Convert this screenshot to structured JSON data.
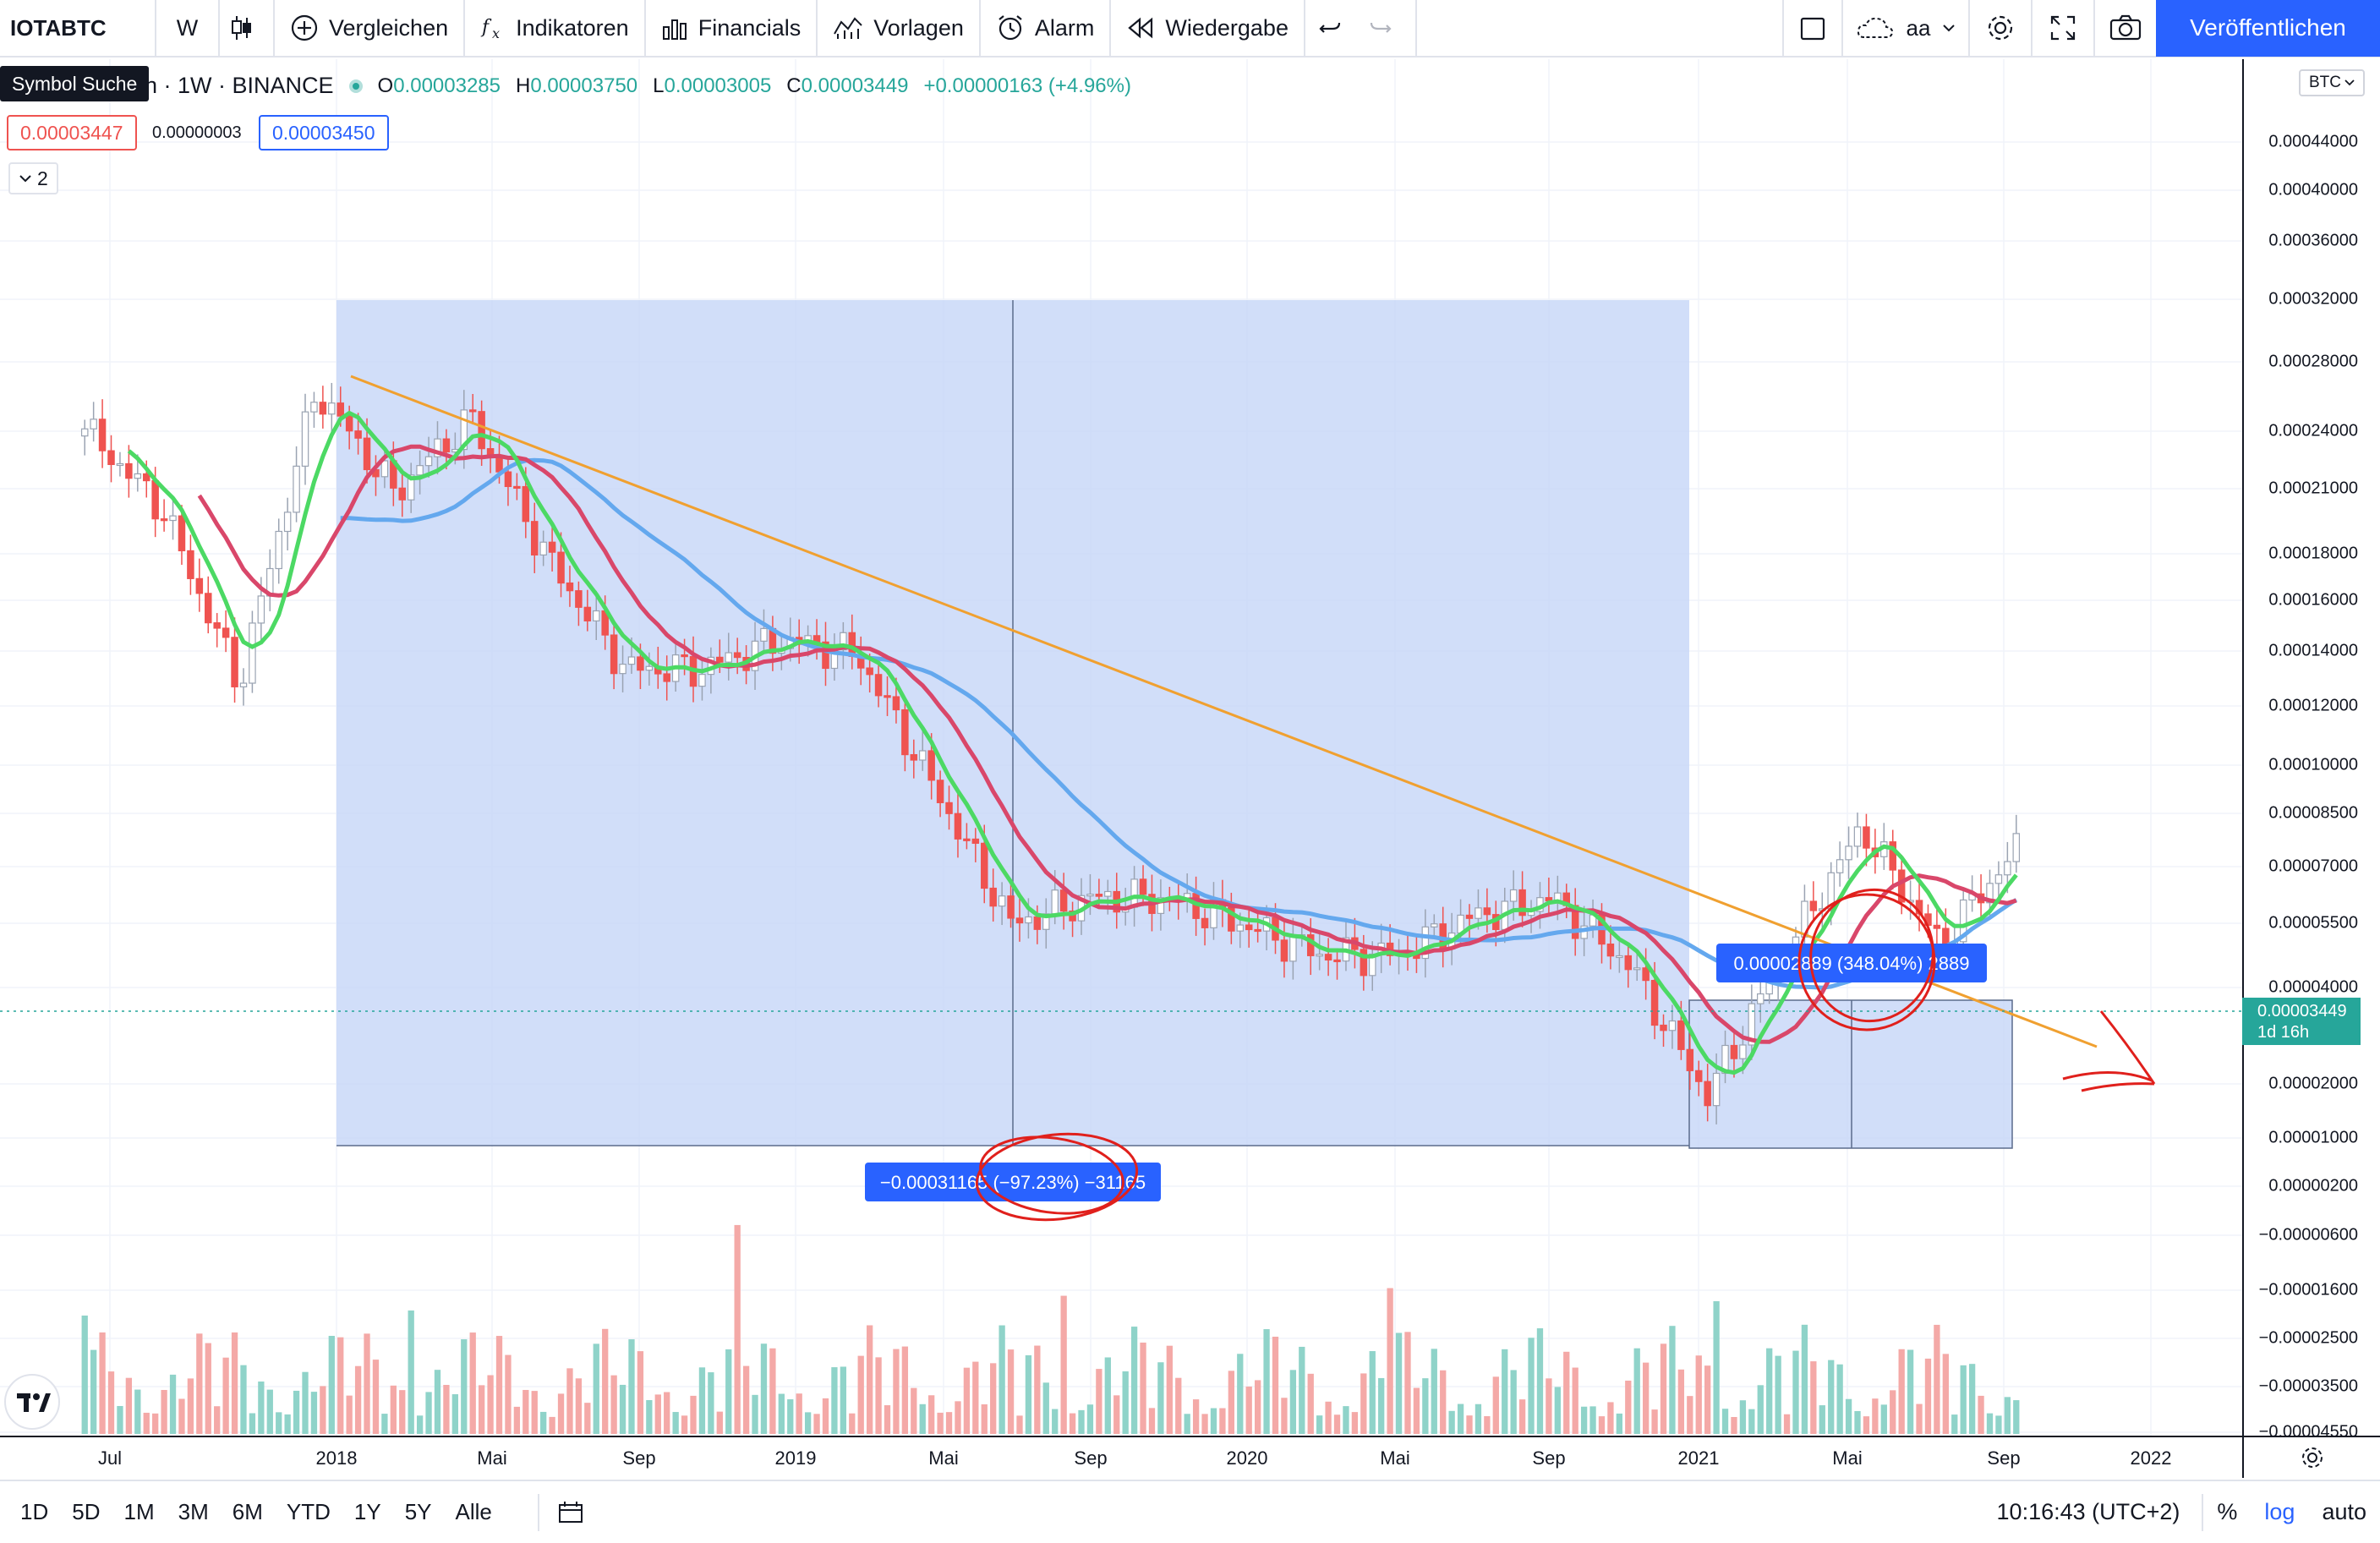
{
  "toolbar": {
    "symbol": "IOTABTC",
    "interval": "W",
    "compare": "Vergleichen",
    "indicators": "Indikatoren",
    "financials": "Financials",
    "templates": "Vorlagen",
    "alert": "Alarm",
    "replay": "Wiedergabe",
    "layout_name": "aa",
    "publish": "Veröffentlichen"
  },
  "legend": {
    "tooltip": "Symbol Suche",
    "title_visible": "in · 1W · BINANCE",
    "open_label": "O",
    "open": "0.00003285",
    "high_label": "H",
    "high": "0.00003750",
    "low_label": "L",
    "low": "0.00003005",
    "close_label": "C",
    "close": "0.00003449",
    "change": "+0.00000163 (+4.96%)",
    "bid": "0.00003447",
    "spread": "0.00000003",
    "ask": "0.00003450",
    "collapse_count": "2"
  },
  "price_axis": {
    "currency": "BTC",
    "labels": [
      "0.00044000",
      "0.00040000",
      "0.00036000",
      "0.00032000",
      "0.00028000",
      "0.00024000",
      "0.00021000",
      "0.00018000",
      "0.00016000",
      "0.00014000",
      "0.00012000",
      "0.00010000",
      "0.00008500",
      "0.00007000",
      "0.00005500",
      "0.00004000",
      "0.00002000",
      "0.00001000",
      "0.00000200",
      "−0.00000600",
      "−0.00001600",
      "−0.00002500",
      "−0.00003500",
      "−0.00004550"
    ],
    "current_price": "0.00003449",
    "countdown": "1d 16h"
  },
  "time_axis": {
    "labels": [
      "Jul",
      "2018",
      "Mai",
      "Sep",
      "2019",
      "Mai",
      "Sep",
      "2020",
      "Mai",
      "Sep",
      "2021",
      "Mai",
      "Sep",
      "2022"
    ]
  },
  "measure_tools": {
    "down_label": "−0.00031165 (−97.23%) −31165",
    "up_label": "0.00002889 (348.04%) 2889"
  },
  "bottom": {
    "ranges": [
      "1D",
      "5D",
      "1M",
      "3M",
      "6M",
      "YTD",
      "1Y",
      "5Y",
      "Alle"
    ],
    "clock": "10:16:43 (UTC+2)",
    "percent": "%",
    "log": "log",
    "auto": "auto"
  },
  "colors": {
    "up": "#26a69a",
    "down": "#ef5350",
    "accent": "#2962ff",
    "ma_fast": "#4cd964",
    "ma_mid": "#d9476a",
    "ma_slow": "#64a8ee",
    "trendline": "#f0a030",
    "measure_fill": "#c5d6f8"
  },
  "chart_data": {
    "type": "candlestick",
    "symbol": "IOTABTC",
    "exchange": "BINANCE",
    "interval": "1W",
    "scale": "log",
    "x_dates": [
      "2017-07",
      "2017-09",
      "2017-11",
      "2018-01",
      "2018-03",
      "2018-05",
      "2018-07",
      "2018-09",
      "2018-11",
      "2019-01",
      "2019-03",
      "2019-05",
      "2019-07",
      "2019-09",
      "2019-11",
      "2020-01",
      "2020-03",
      "2020-05",
      "2020-07",
      "2020-09",
      "2020-11",
      "2021-01",
      "2021-03",
      "2021-05",
      "2021-07",
      "2021-09"
    ],
    "approx_close": [
      0.00021,
      0.00015,
      7e-05,
      0.00025,
      0.00016,
      0.00022,
      0.00012,
      7.5e-05,
      7.5e-05,
      8.5e-05,
      8e-05,
      4.5e-05,
      2.5e-05,
      2.8e-05,
      2.8e-05,
      2.5e-05,
      2.2e-05,
      2.2e-05,
      2.6e-05,
      2.8e-05,
      2.1e-05,
      1.2e-05,
      2.2e-05,
      3.8e-05,
      2.3e-05,
      3.449e-05
    ],
    "series": [
      {
        "name": "MA fast (green)",
        "role": "moving-average"
      },
      {
        "name": "MA mid (red)",
        "role": "moving-average"
      },
      {
        "name": "MA slow (blue)",
        "role": "moving-average"
      }
    ],
    "annotations": [
      "−0.00031165 (−97.23%) −31165",
      "0.00002889 (348.04%) 2889"
    ]
  }
}
